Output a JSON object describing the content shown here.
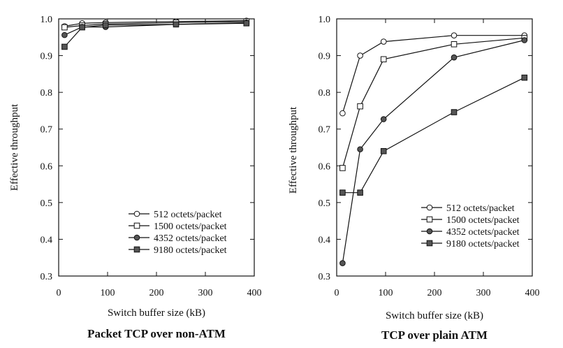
{
  "chart_data": [
    {
      "type": "line",
      "title": "Packet TCP over non-ATM",
      "xlabel": "Switch buffer size (kB)",
      "ylabel": "Effective throughput",
      "xlim": [
        0,
        400
      ],
      "ylim": [
        0.3,
        1.0
      ],
      "xticks": [
        "0",
        "100",
        "200",
        "300",
        "400"
      ],
      "yticks": [
        "0.3",
        "0.4",
        "0.5",
        "0.6",
        "0.7",
        "0.8",
        "0.9",
        "1.0"
      ],
      "grid": false,
      "legend_position": "bottom-right",
      "series": [
        {
          "name": "512 octets/packet",
          "marker": "open-circle",
          "x": [
            12,
            48,
            96,
            240,
            384
          ],
          "y": [
            0.98,
            0.988,
            0.99,
            0.993,
            0.995
          ]
        },
        {
          "name": "1500 octets/packet",
          "marker": "open-square",
          "x": [
            12,
            48,
            96,
            240,
            384
          ],
          "y": [
            0.977,
            0.982,
            0.986,
            0.99,
            0.993
          ]
        },
        {
          "name": "4352 octets/packet",
          "marker": "filled-circle",
          "x": [
            12,
            48,
            96,
            240,
            384
          ],
          "y": [
            0.956,
            0.978,
            0.978,
            0.985,
            0.99
          ]
        },
        {
          "name": "9180 octets/packet",
          "marker": "filled-square",
          "x": [
            12,
            48,
            96,
            240,
            384
          ],
          "y": [
            0.924,
            0.977,
            0.983,
            0.985,
            0.988
          ]
        }
      ]
    },
    {
      "type": "line",
      "title": "TCP over plain ATM",
      "xlabel": "Switch buffer size (kB)",
      "ylabel": "Effective throughput",
      "xlim": [
        0,
        400
      ],
      "ylim": [
        0.3,
        1.0
      ],
      "xticks": [
        "0",
        "100",
        "200",
        "300",
        "400"
      ],
      "yticks": [
        "0.3",
        "0.4",
        "0.5",
        "0.6",
        "0.7",
        "0.8",
        "0.9",
        "1.0"
      ],
      "grid": false,
      "legend_position": "bottom-right",
      "series": [
        {
          "name": "512 octets/packet",
          "marker": "open-circle",
          "x": [
            12,
            48,
            96,
            240,
            384
          ],
          "y": [
            0.743,
            0.9,
            0.938,
            0.955,
            0.955
          ]
        },
        {
          "name": "1500 octets/packet",
          "marker": "open-square",
          "x": [
            12,
            48,
            96,
            240,
            384
          ],
          "y": [
            0.594,
            0.762,
            0.89,
            0.931,
            0.948
          ]
        },
        {
          "name": "4352 octets/packet",
          "marker": "filled-circle",
          "x": [
            12,
            48,
            96,
            240,
            384
          ],
          "y": [
            0.335,
            0.645,
            0.727,
            0.895,
            0.942
          ]
        },
        {
          "name": "9180 octets/packet",
          "marker": "filled-square",
          "x": [
            12,
            48,
            96,
            240,
            384
          ],
          "y": [
            0.527,
            0.527,
            0.64,
            0.746,
            0.84
          ]
        }
      ]
    }
  ],
  "style": {
    "line_color": "#111111",
    "fill_marker": "#555555",
    "open_marker": "#ffffff"
  }
}
